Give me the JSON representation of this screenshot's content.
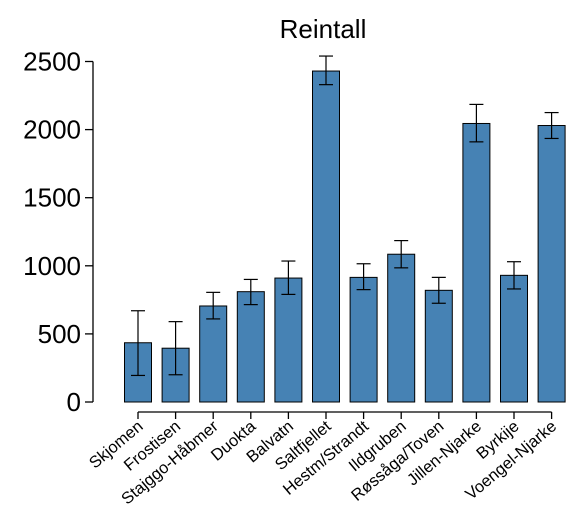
{
  "chart_data": {
    "type": "bar",
    "title": "Reintall",
    "xlabel": "",
    "ylabel": "",
    "categories": [
      "Skjomen",
      "Frostisen",
      "Stajggo-Håbmer",
      "Duokta",
      "Balvatn",
      "Saltfjellet",
      "Hestm/Strandt",
      "Ildgruben",
      "Røssåga/Toven",
      "Jillen-Njarke",
      "Byrkije",
      "Voengel-Njarke"
    ],
    "values": [
      435,
      395,
      705,
      810,
      910,
      2430,
      915,
      1085,
      820,
      2045,
      930,
      2030
    ],
    "error_low": [
      195,
      200,
      610,
      715,
      790,
      2330,
      825,
      985,
      725,
      1910,
      830,
      1935
    ],
    "error_high": [
      670,
      590,
      805,
      900,
      1035,
      2540,
      1015,
      1185,
      915,
      2185,
      1030,
      2125
    ],
    "yticks": [
      0,
      500,
      1000,
      1500,
      2000,
      2500
    ],
    "ylim": [
      0,
      2550
    ],
    "bar_color": "#4682B4",
    "grid": false,
    "legend": "none"
  }
}
